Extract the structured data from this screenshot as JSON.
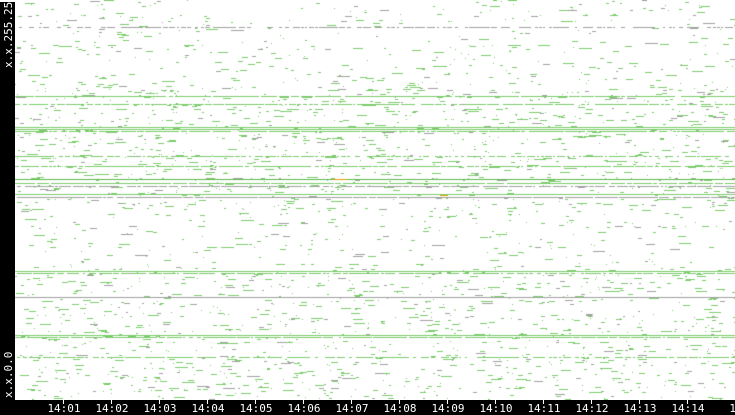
{
  "y_axis": {
    "top_label": "x.x.255.255",
    "bottom_label": "x.x.0.0"
  },
  "x_axis": {
    "ticks": [
      "14:01",
      "14:02",
      "14:03",
      "14:04",
      "14:05",
      "14:06",
      "14:07",
      "14:08",
      "14:09",
      "14:10",
      "14:11",
      "14:12",
      "14:13",
      "14:14",
      "14"
    ]
  },
  "colors": {
    "background": "#ffffff",
    "frame": "#000000",
    "traffic": "#7ccc6c",
    "traffic_dark": "#5cb84c",
    "gray": "#a0a0a0",
    "highlight": "#e0a000"
  }
}
